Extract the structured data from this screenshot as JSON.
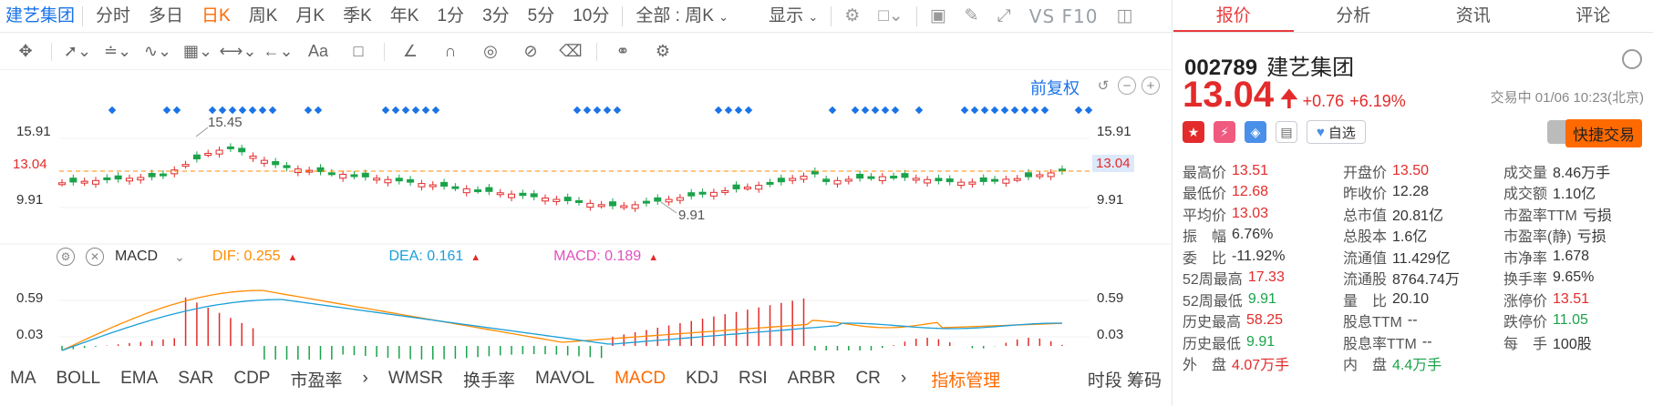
{
  "toolbar": {
    "stock_name": "建艺集团",
    "periods": [
      "分时",
      "多日",
      "日K",
      "周K",
      "月K",
      "季K",
      "年K",
      "1分",
      "3分",
      "5分",
      "10分"
    ],
    "active_period": "日K",
    "range_select": "全部 : 周K",
    "display_label": "显示",
    "vs_label": "VS F10"
  },
  "draw_tools": {
    "text_tool": "Aa"
  },
  "kline": {
    "fuquan_label": "前复权",
    "axis_left": [
      "15.91",
      "13.04",
      "9.91"
    ],
    "axis_right": [
      "15.91",
      "13.04",
      "9.91"
    ],
    "high_marker": "15.45",
    "low_marker": "9.91",
    "current_price_tag": "13.04",
    "colors": {
      "up": "#e32b2b",
      "down": "#1aa34a",
      "marker": "#1a73e8",
      "dashed": "#ff8c00"
    }
  },
  "macd": {
    "name": "MACD",
    "dif_label": "DIF: 0.255",
    "dea_label": "DEA: 0.161",
    "macd_label": "MACD: 0.189",
    "axis_left": [
      "0.59",
      "0.03"
    ],
    "axis_right": [
      "0.59",
      "0.03"
    ]
  },
  "indicators": {
    "items": [
      "MA",
      "BOLL",
      "EMA",
      "SAR",
      "CDP",
      "市盈率",
      "WMSR",
      "换手率",
      "MAVOL",
      "MACD",
      "KDJ",
      "RSI",
      "ARBR",
      "CR"
    ],
    "active": "MACD",
    "manage_label": "指标管理",
    "right_label": "时段 筹码"
  },
  "info": {
    "tabs": [
      "报价",
      "分析",
      "资讯",
      "评论"
    ],
    "active_tab": "报价",
    "code": "002789",
    "name": "建艺集团",
    "price": "13.04",
    "change": "+0.76",
    "pct": "+6.19%",
    "status": "交易中 01/06 10:23(北京)",
    "watch_label": "自选",
    "quick_trade": "快捷交易",
    "stats": [
      [
        {
          "k": "最高价",
          "v": "13.51",
          "c": "red"
        },
        {
          "k": "开盘价",
          "v": "13.50",
          "c": "red"
        },
        {
          "k": "成交量",
          "v": "8.46万手",
          "c": ""
        }
      ],
      [
        {
          "k": "最低价",
          "v": "12.68",
          "c": "red"
        },
        {
          "k": "昨收价",
          "v": "12.28",
          "c": ""
        },
        {
          "k": "成交额",
          "v": "1.10亿",
          "c": ""
        }
      ],
      [
        {
          "k": "平均价",
          "v": "13.03",
          "c": "red"
        },
        {
          "k": "总市值",
          "v": "20.81亿",
          "c": ""
        },
        {
          "k": "市盈率TTM",
          "v": "亏损",
          "c": ""
        }
      ],
      [
        {
          "k": "振　幅",
          "v": "6.76%",
          "c": ""
        },
        {
          "k": "总股本",
          "v": "1.6亿",
          "c": ""
        },
        {
          "k": "市盈率(静)",
          "v": "亏损",
          "c": ""
        }
      ],
      [
        {
          "k": "委　比",
          "v": "-11.92%",
          "c": ""
        },
        {
          "k": "流通值",
          "v": "11.429亿",
          "c": ""
        },
        {
          "k": "市净率",
          "v": "1.678",
          "c": ""
        }
      ],
      [
        {
          "k": "52周最高",
          "v": "17.33",
          "c": "red"
        },
        {
          "k": "流通股",
          "v": "8764.74万",
          "c": ""
        },
        {
          "k": "换手率",
          "v": "9.65%",
          "c": ""
        }
      ],
      [
        {
          "k": "52周最低",
          "v": "9.91",
          "c": "grn"
        },
        {
          "k": "量　比",
          "v": "20.10",
          "c": ""
        },
        {
          "k": "涨停价",
          "v": "13.51",
          "c": "red"
        }
      ],
      [
        {
          "k": "历史最高",
          "v": "58.25",
          "c": "red"
        },
        {
          "k": "股息TTM",
          "v": "--",
          "c": ""
        },
        {
          "k": "跌停价",
          "v": "11.05",
          "c": "grn"
        }
      ],
      [
        {
          "k": "历史最低",
          "v": "9.91",
          "c": "grn"
        },
        {
          "k": "股息率TTM",
          "v": "--",
          "c": ""
        },
        {
          "k": "每　手",
          "v": "100股",
          "c": ""
        }
      ],
      [
        {
          "k": "外　盘",
          "v": "4.07万手",
          "c": "red"
        },
        {
          "k": "内　盘",
          "v": "4.4万手",
          "c": "grn"
        },
        {
          "k": "",
          "v": "",
          "c": ""
        }
      ]
    ]
  }
}
